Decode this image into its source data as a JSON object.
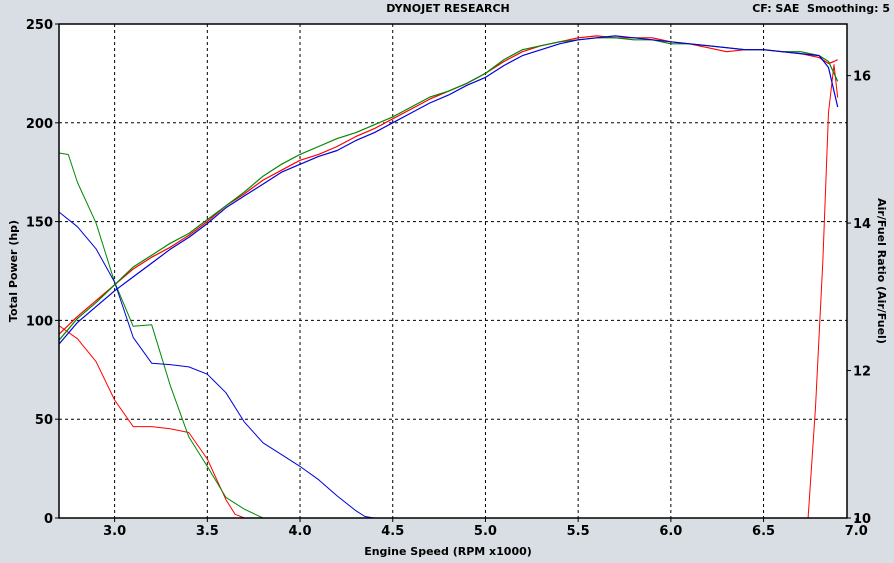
{
  "header": {
    "title": "DYNOJET RESEARCH",
    "info": "CF: SAE  Smoothing: 5"
  },
  "chart_data": {
    "type": "line",
    "title": "DYNOJET RESEARCH",
    "xlabel": "Engine Speed (RPM x1000)",
    "ylabel": "Total Power (hp)",
    "y2label": "Air/Fuel Ratio (Air/Fuel)",
    "xlim": [
      2.7,
      6.95
    ],
    "ylim": [
      0,
      250
    ],
    "y2lim": [
      10,
      16.7
    ],
    "xticks": [
      "3.0",
      "3.5",
      "4.0",
      "4.5",
      "5.0",
      "5.5",
      "6.0",
      "6.5",
      "7.0"
    ],
    "xtick_values": [
      3.0,
      3.5,
      4.0,
      4.5,
      5.0,
      5.5,
      6.0,
      6.5,
      7.0
    ],
    "yticks": [
      "0",
      "50",
      "100",
      "150",
      "200",
      "250"
    ],
    "ytick_values": [
      0,
      50,
      100,
      150,
      200,
      250
    ],
    "y2ticks": [
      "10",
      "12",
      "14",
      "16"
    ],
    "y2tick_values": [
      10,
      12,
      14,
      16
    ],
    "grid": true,
    "colors": {
      "red": "#ff0000",
      "green": "#008800",
      "blue": "#0000dd",
      "background": "#d9dee5",
      "plot_bg": "#ffffff"
    },
    "power_series": [
      {
        "color": "#ff0000",
        "axis": "left",
        "points": [
          [
            2.7,
            93
          ],
          [
            2.8,
            102
          ],
          [
            2.9,
            110
          ],
          [
            3.0,
            118
          ],
          [
            3.1,
            126
          ],
          [
            3.2,
            132
          ],
          [
            3.3,
            137
          ],
          [
            3.4,
            143
          ],
          [
            3.5,
            150
          ],
          [
            3.6,
            158
          ],
          [
            3.7,
            164
          ],
          [
            3.8,
            171
          ],
          [
            3.9,
            176
          ],
          [
            4.0,
            181
          ],
          [
            4.1,
            184
          ],
          [
            4.2,
            188
          ],
          [
            4.3,
            193
          ],
          [
            4.4,
            197
          ],
          [
            4.5,
            202
          ],
          [
            4.6,
            207
          ],
          [
            4.7,
            212
          ],
          [
            4.8,
            216
          ],
          [
            4.9,
            220
          ],
          [
            5.0,
            225
          ],
          [
            5.1,
            231
          ],
          [
            5.2,
            236
          ],
          [
            5.3,
            239
          ],
          [
            5.4,
            241
          ],
          [
            5.5,
            243
          ],
          [
            5.6,
            244
          ],
          [
            5.7,
            243
          ],
          [
            5.8,
            243
          ],
          [
            5.9,
            243
          ],
          [
            6.0,
            241
          ],
          [
            6.1,
            240
          ],
          [
            6.2,
            238
          ],
          [
            6.3,
            236
          ],
          [
            6.4,
            237
          ],
          [
            6.5,
            237
          ],
          [
            6.6,
            236
          ],
          [
            6.7,
            235
          ],
          [
            6.8,
            233
          ],
          [
            6.85,
            230
          ],
          [
            6.88,
            231
          ],
          [
            6.9,
            232
          ]
        ]
      },
      {
        "color": "#008800",
        "axis": "left",
        "points": [
          [
            2.7,
            90
          ],
          [
            2.8,
            101
          ],
          [
            2.9,
            109
          ],
          [
            3.0,
            118
          ],
          [
            3.1,
            127
          ],
          [
            3.2,
            133
          ],
          [
            3.3,
            139
          ],
          [
            3.4,
            144
          ],
          [
            3.5,
            151
          ],
          [
            3.6,
            158
          ],
          [
            3.7,
            165
          ],
          [
            3.8,
            173
          ],
          [
            3.9,
            179
          ],
          [
            4.0,
            184
          ],
          [
            4.1,
            188
          ],
          [
            4.2,
            192
          ],
          [
            4.3,
            195
          ],
          [
            4.4,
            199
          ],
          [
            4.5,
            203
          ],
          [
            4.6,
            208
          ],
          [
            4.7,
            213
          ],
          [
            4.8,
            216
          ],
          [
            4.9,
            220
          ],
          [
            5.0,
            225
          ],
          [
            5.1,
            232
          ],
          [
            5.2,
            237
          ],
          [
            5.3,
            239
          ],
          [
            5.4,
            241
          ],
          [
            5.5,
            242
          ],
          [
            5.6,
            243
          ],
          [
            5.7,
            243
          ],
          [
            5.8,
            242
          ],
          [
            5.9,
            242
          ],
          [
            6.0,
            240
          ],
          [
            6.1,
            240
          ],
          [
            6.2,
            239
          ],
          [
            6.3,
            238
          ],
          [
            6.4,
            237
          ],
          [
            6.5,
            237
          ],
          [
            6.6,
            236
          ],
          [
            6.7,
            236
          ],
          [
            6.8,
            234
          ],
          [
            6.85,
            231
          ],
          [
            6.9,
            221
          ]
        ]
      },
      {
        "color": "#0000dd",
        "axis": "left",
        "points": [
          [
            2.7,
            88
          ],
          [
            2.8,
            99
          ],
          [
            2.9,
            107
          ],
          [
            3.0,
            115
          ],
          [
            3.1,
            122
          ],
          [
            3.2,
            129
          ],
          [
            3.3,
            136
          ],
          [
            3.4,
            142
          ],
          [
            3.5,
            149
          ],
          [
            3.6,
            157
          ],
          [
            3.7,
            163
          ],
          [
            3.8,
            169
          ],
          [
            3.9,
            175
          ],
          [
            4.0,
            179
          ],
          [
            4.1,
            183
          ],
          [
            4.2,
            186
          ],
          [
            4.3,
            191
          ],
          [
            4.4,
            195
          ],
          [
            4.5,
            200
          ],
          [
            4.6,
            205
          ],
          [
            4.7,
            210
          ],
          [
            4.8,
            214
          ],
          [
            4.9,
            219
          ],
          [
            5.0,
            223
          ],
          [
            5.1,
            229
          ],
          [
            5.2,
            234
          ],
          [
            5.3,
            237
          ],
          [
            5.4,
            240
          ],
          [
            5.5,
            242
          ],
          [
            5.6,
            243
          ],
          [
            5.7,
            244
          ],
          [
            5.8,
            243
          ],
          [
            5.9,
            242
          ],
          [
            6.0,
            241
          ],
          [
            6.1,
            240
          ],
          [
            6.2,
            239
          ],
          [
            6.3,
            238
          ],
          [
            6.4,
            237
          ],
          [
            6.5,
            237
          ],
          [
            6.6,
            236
          ],
          [
            6.7,
            235
          ],
          [
            6.8,
            234
          ],
          [
            6.85,
            228
          ],
          [
            6.9,
            208
          ]
        ]
      }
    ],
    "afr_series": [
      {
        "color": "#ff0000",
        "axis": "right",
        "points": [
          [
            2.7,
            12.61
          ],
          [
            2.8,
            12.43
          ],
          [
            2.9,
            12.12
          ],
          [
            3.0,
            11.6
          ],
          [
            3.1,
            11.24
          ],
          [
            3.2,
            11.24
          ],
          [
            3.3,
            11.21
          ],
          [
            3.4,
            11.16
          ],
          [
            3.5,
            10.8
          ],
          [
            3.6,
            10.25
          ],
          [
            3.65,
            10.05
          ],
          [
            3.7,
            10.0
          ],
          [
            6.5,
            10.0
          ],
          [
            6.74,
            10.0
          ],
          [
            6.78,
            11.5
          ],
          [
            6.82,
            13.5
          ],
          [
            6.85,
            15.5
          ],
          [
            6.88,
            16.15
          ],
          [
            6.9,
            15.7
          ]
        ]
      },
      {
        "color": "#008800",
        "axis": "right",
        "points": [
          [
            2.7,
            14.95
          ],
          [
            2.75,
            14.93
          ],
          [
            2.8,
            14.55
          ],
          [
            2.9,
            14.0
          ],
          [
            3.0,
            13.2
          ],
          [
            3.1,
            12.6
          ],
          [
            3.2,
            12.62
          ],
          [
            3.3,
            11.8
          ],
          [
            3.4,
            11.1
          ],
          [
            3.5,
            10.7
          ],
          [
            3.6,
            10.28
          ],
          [
            3.7,
            10.12
          ],
          [
            3.8,
            10.0
          ],
          [
            6.9,
            10.0
          ]
        ]
      },
      {
        "color": "#0000dd",
        "axis": "right",
        "points": [
          [
            2.7,
            14.15
          ],
          [
            2.8,
            13.95
          ],
          [
            2.9,
            13.65
          ],
          [
            3.0,
            13.2
          ],
          [
            3.1,
            12.45
          ],
          [
            3.2,
            12.1
          ],
          [
            3.3,
            12.08
          ],
          [
            3.4,
            12.05
          ],
          [
            3.5,
            11.95
          ],
          [
            3.6,
            11.7
          ],
          [
            3.7,
            11.3
          ],
          [
            3.8,
            11.02
          ],
          [
            3.9,
            10.86
          ],
          [
            4.0,
            10.7
          ],
          [
            4.1,
            10.52
          ],
          [
            4.2,
            10.3
          ],
          [
            4.3,
            10.1
          ],
          [
            4.35,
            10.02
          ],
          [
            4.4,
            10.0
          ],
          [
            6.9,
            10.0
          ]
        ]
      }
    ]
  }
}
